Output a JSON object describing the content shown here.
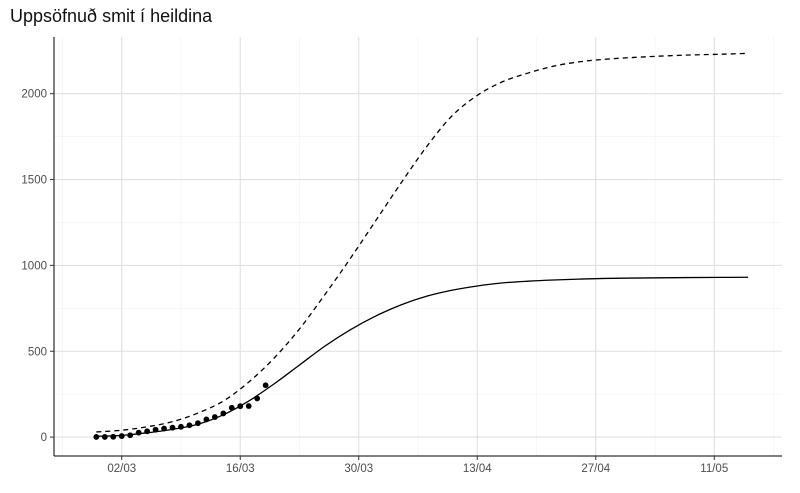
{
  "chart_data": {
    "type": "line",
    "title": "Uppsöfnuð smit í heildina",
    "xlabel": "",
    "ylabel": "",
    "x_range": [
      "2020-02-23",
      "2020-05-19"
    ],
    "ylim": [
      -110,
      2330
    ],
    "x_ticks": [
      {
        "date": "2020-03-02",
        "label": "02/03"
      },
      {
        "date": "2020-03-16",
        "label": "16/03"
      },
      {
        "date": "2020-03-30",
        "label": "30/03"
      },
      {
        "date": "2020-04-13",
        "label": "13/04"
      },
      {
        "date": "2020-04-27",
        "label": "27/04"
      },
      {
        "date": "2020-05-11",
        "label": "11/05"
      }
    ],
    "y_ticks": [
      0,
      500,
      1000,
      1500,
      2000
    ],
    "grid": true,
    "legend": "none",
    "series": [
      {
        "kind": "line",
        "style": "solid",
        "points": [
          [
            "2020-02-28",
            5
          ],
          [
            "2020-03-02",
            10
          ],
          [
            "2020-03-05",
            25
          ],
          [
            "2020-03-08",
            45
          ],
          [
            "2020-03-11",
            75
          ],
          [
            "2020-03-14",
            130
          ],
          [
            "2020-03-17",
            210
          ],
          [
            "2020-03-20",
            310
          ],
          [
            "2020-03-23",
            420
          ],
          [
            "2020-03-26",
            530
          ],
          [
            "2020-03-29",
            625
          ],
          [
            "2020-04-01",
            705
          ],
          [
            "2020-04-04",
            770
          ],
          [
            "2020-04-07",
            820
          ],
          [
            "2020-04-10",
            855
          ],
          [
            "2020-04-13",
            880
          ],
          [
            "2020-04-16",
            898
          ],
          [
            "2020-04-19",
            908
          ],
          [
            "2020-04-22",
            915
          ],
          [
            "2020-04-25",
            920
          ],
          [
            "2020-04-28",
            924
          ],
          [
            "2020-05-03",
            927
          ],
          [
            "2020-05-08",
            929
          ],
          [
            "2020-05-12",
            930
          ],
          [
            "2020-05-15",
            931
          ]
        ]
      },
      {
        "kind": "line",
        "style": "dashed",
        "points": [
          [
            "2020-02-28",
            30
          ],
          [
            "2020-03-02",
            40
          ],
          [
            "2020-03-05",
            60
          ],
          [
            "2020-03-08",
            90
          ],
          [
            "2020-03-11",
            140
          ],
          [
            "2020-03-14",
            210
          ],
          [
            "2020-03-17",
            320
          ],
          [
            "2020-03-20",
            460
          ],
          [
            "2020-03-23",
            630
          ],
          [
            "2020-03-26",
            830
          ],
          [
            "2020-03-29",
            1040
          ],
          [
            "2020-04-01",
            1260
          ],
          [
            "2020-04-04",
            1480
          ],
          [
            "2020-04-07",
            1690
          ],
          [
            "2020-04-10",
            1870
          ],
          [
            "2020-04-13",
            1990
          ],
          [
            "2020-04-16",
            2070
          ],
          [
            "2020-04-19",
            2120
          ],
          [
            "2020-04-22",
            2160
          ],
          [
            "2020-04-25",
            2185
          ],
          [
            "2020-04-28",
            2200
          ],
          [
            "2020-05-03",
            2215
          ],
          [
            "2020-05-08",
            2225
          ],
          [
            "2020-05-12",
            2230
          ],
          [
            "2020-05-15",
            2235
          ]
        ]
      },
      {
        "kind": "points",
        "points": [
          [
            "2020-02-28",
            1
          ],
          [
            "2020-02-29",
            1
          ],
          [
            "2020-03-01",
            2
          ],
          [
            "2020-03-02",
            6
          ],
          [
            "2020-03-03",
            11
          ],
          [
            "2020-03-04",
            26
          ],
          [
            "2020-03-05",
            34
          ],
          [
            "2020-03-06",
            43
          ],
          [
            "2020-03-07",
            50
          ],
          [
            "2020-03-08",
            55
          ],
          [
            "2020-03-09",
            60
          ],
          [
            "2020-03-10",
            69
          ],
          [
            "2020-03-11",
            81
          ],
          [
            "2020-03-12",
            103
          ],
          [
            "2020-03-13",
            117
          ],
          [
            "2020-03-14",
            138
          ],
          [
            "2020-03-15",
            171
          ],
          [
            "2020-03-16",
            180
          ],
          [
            "2020-03-17",
            181
          ],
          [
            "2020-03-18",
            225
          ],
          [
            "2020-03-19",
            302
          ]
        ]
      }
    ]
  }
}
